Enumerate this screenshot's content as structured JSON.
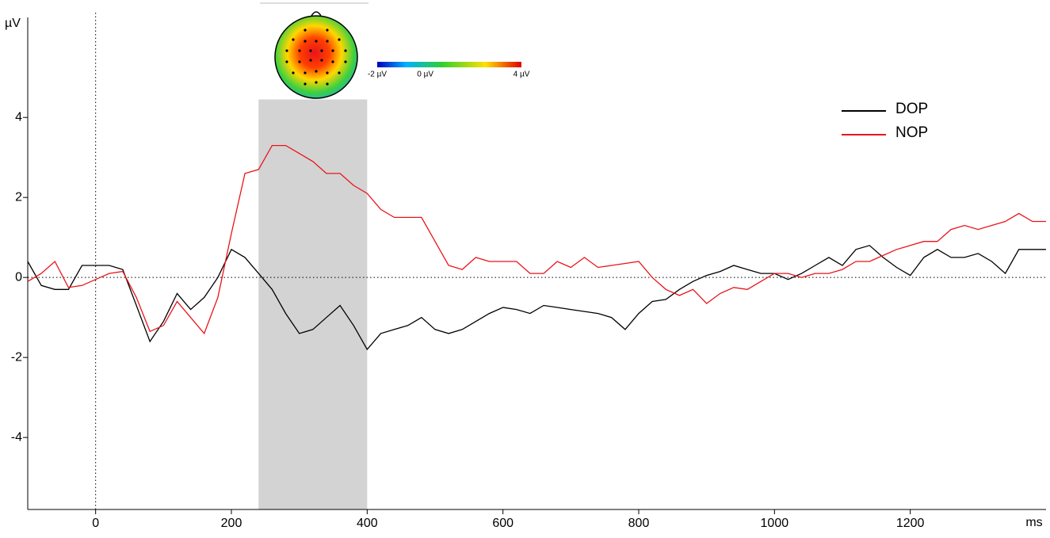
{
  "chart_data": {
    "type": "line",
    "y_label": "µV",
    "x_label": "ms",
    "xlim": [
      -100,
      1400
    ],
    "xticks": [
      0,
      200,
      400,
      600,
      800,
      1000,
      1200
    ],
    "ylim": [
      -5.8,
      6.5
    ],
    "yticks": [
      -4,
      -2,
      0,
      2,
      4
    ],
    "highlight": {
      "xlim": [
        240,
        400
      ],
      "top": 4.45,
      "color": "#d3d3d3"
    },
    "colorbar": {
      "lim": [
        -2,
        4
      ],
      "ticks": [
        {
          "value": -2,
          "label": "-2 µV"
        },
        {
          "value": 0,
          "label": "0 µV"
        },
        {
          "value": 4,
          "label": "4 µV"
        }
      ]
    },
    "x": [
      -100,
      -80,
      -60,
      -40,
      -20,
      0,
      20,
      40,
      60,
      80,
      100,
      120,
      140,
      160,
      180,
      200,
      220,
      240,
      260,
      280,
      300,
      320,
      340,
      360,
      380,
      400,
      420,
      440,
      460,
      480,
      500,
      520,
      540,
      560,
      580,
      600,
      620,
      640,
      660,
      680,
      700,
      720,
      740,
      760,
      780,
      800,
      820,
      840,
      860,
      880,
      900,
      920,
      940,
      960,
      980,
      1000,
      1020,
      1040,
      1060,
      1080,
      1100,
      1120,
      1140,
      1160,
      1180,
      1200,
      1220,
      1240,
      1260,
      1280,
      1300,
      1320,
      1340,
      1360,
      1380,
      1400
    ],
    "series": [
      {
        "name": "DOP",
        "color": "#000000",
        "values": [
          0.4,
          -0.2,
          -0.3,
          -0.3,
          0.3,
          0.3,
          0.3,
          0.2,
          -0.7,
          -1.6,
          -1.1,
          -0.4,
          -0.8,
          -0.5,
          0.0,
          0.7,
          0.5,
          0.1,
          -0.3,
          -0.9,
          -1.4,
          -1.3,
          -1.0,
          -0.7,
          -1.2,
          -1.8,
          -1.4,
          -1.3,
          -1.2,
          -1.0,
          -1.3,
          -1.4,
          -1.3,
          -1.1,
          -0.9,
          -0.75,
          -0.8,
          -0.9,
          -0.7,
          -0.75,
          -0.8,
          -0.85,
          -0.9,
          -1.0,
          -1.3,
          -0.9,
          -0.6,
          -0.55,
          -0.3,
          -0.1,
          0.05,
          0.15,
          0.3,
          0.2,
          0.1,
          0.1,
          -0.05,
          0.1,
          0.3,
          0.5,
          0.3,
          0.7,
          0.8,
          0.5,
          0.25,
          0.05,
          0.5,
          0.7,
          0.5,
          0.5,
          0.6,
          0.4,
          0.1,
          0.7,
          0.7,
          0.7
        ]
      },
      {
        "name": "NOP",
        "color": "#e8141b",
        "values": [
          -0.1,
          0.1,
          0.4,
          -0.25,
          -0.2,
          -0.05,
          0.1,
          0.15,
          -0.5,
          -1.35,
          -1.2,
          -0.6,
          -1.0,
          -1.4,
          -0.5,
          1.1,
          2.6,
          2.7,
          3.3,
          3.3,
          3.1,
          2.9,
          2.6,
          2.6,
          2.3,
          2.1,
          1.7,
          1.5,
          1.5,
          1.5,
          0.9,
          0.3,
          0.2,
          0.5,
          0.4,
          0.4,
          0.4,
          0.1,
          0.1,
          0.4,
          0.25,
          0.5,
          0.25,
          0.3,
          0.35,
          0.4,
          0.0,
          -0.3,
          -0.45,
          -0.3,
          -0.65,
          -0.4,
          -0.25,
          -0.3,
          -0.1,
          0.1,
          0.1,
          0.0,
          0.1,
          0.1,
          0.2,
          0.4,
          0.4,
          0.55,
          0.7,
          0.8,
          0.9,
          0.9,
          1.2,
          1.3,
          1.2,
          1.3,
          1.4,
          1.6,
          1.4,
          1.4
        ]
      }
    ]
  }
}
